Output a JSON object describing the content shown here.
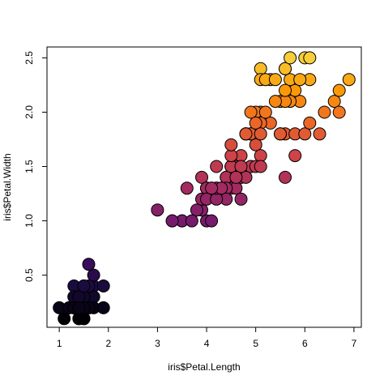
{
  "chart_data": {
    "type": "scatter",
    "title": "",
    "xlabel": "iris$Petal.Length",
    "ylabel": "iris$Petal.Width",
    "xlim": [
      0.75,
      7.15
    ],
    "ylim": [
      0.02,
      2.6
    ],
    "xticks": [
      1,
      2,
      3,
      4,
      5,
      6,
      7
    ],
    "yticks": [
      0.5,
      1.0,
      1.5,
      2.0,
      2.5
    ],
    "ytick_labels": [
      "0.5",
      "1.0",
      "1.5",
      "2.0",
      "2.5"
    ],
    "grid": false,
    "legend": "none",
    "color_scale": "inferno-like, mapped to y value",
    "colors": {
      "low": "#000004",
      "stops": [
        "#000004",
        "#1b0c41",
        "#4a0c6b",
        "#781c6d",
        "#a52c60",
        "#cf4446",
        "#ed6925",
        "#fb9b06",
        "#f7d13d",
        "#fcffa4"
      ],
      "marker_edge": "#000000"
    },
    "points": [
      [
        1.4,
        0.2
      ],
      [
        1.4,
        0.2
      ],
      [
        1.3,
        0.2
      ],
      [
        1.5,
        0.2
      ],
      [
        1.4,
        0.2
      ],
      [
        1.7,
        0.4
      ],
      [
        1.4,
        0.3
      ],
      [
        1.5,
        0.2
      ],
      [
        1.4,
        0.2
      ],
      [
        1.5,
        0.1
      ],
      [
        1.5,
        0.2
      ],
      [
        1.6,
        0.2
      ],
      [
        1.4,
        0.1
      ],
      [
        1.1,
        0.1
      ],
      [
        1.2,
        0.2
      ],
      [
        1.5,
        0.4
      ],
      [
        1.3,
        0.4
      ],
      [
        1.4,
        0.3
      ],
      [
        1.7,
        0.3
      ],
      [
        1.5,
        0.3
      ],
      [
        1.7,
        0.2
      ],
      [
        1.5,
        0.4
      ],
      [
        1.0,
        0.2
      ],
      [
        1.7,
        0.5
      ],
      [
        1.9,
        0.2
      ],
      [
        1.6,
        0.2
      ],
      [
        1.6,
        0.4
      ],
      [
        1.5,
        0.2
      ],
      [
        1.4,
        0.2
      ],
      [
        1.6,
        0.2
      ],
      [
        1.6,
        0.2
      ],
      [
        1.5,
        0.4
      ],
      [
        1.5,
        0.1
      ],
      [
        1.4,
        0.2
      ],
      [
        1.5,
        0.2
      ],
      [
        1.2,
        0.2
      ],
      [
        1.3,
        0.2
      ],
      [
        1.4,
        0.1
      ],
      [
        1.3,
        0.2
      ],
      [
        1.5,
        0.2
      ],
      [
        1.3,
        0.3
      ],
      [
        1.3,
        0.3
      ],
      [
        1.3,
        0.2
      ],
      [
        1.6,
        0.6
      ],
      [
        1.9,
        0.4
      ],
      [
        1.4,
        0.3
      ],
      [
        1.6,
        0.2
      ],
      [
        1.4,
        0.2
      ],
      [
        1.5,
        0.2
      ],
      [
        1.4,
        0.2
      ],
      [
        4.7,
        1.4
      ],
      [
        4.5,
        1.5
      ],
      [
        4.9,
        1.5
      ],
      [
        4.0,
        1.3
      ],
      [
        4.6,
        1.5
      ],
      [
        4.5,
        1.3
      ],
      [
        4.7,
        1.6
      ],
      [
        3.3,
        1.0
      ],
      [
        4.6,
        1.3
      ],
      [
        3.9,
        1.4
      ],
      [
        3.5,
        1.0
      ],
      [
        4.2,
        1.5
      ],
      [
        4.0,
        1.0
      ],
      [
        4.7,
        1.4
      ],
      [
        3.6,
        1.3
      ],
      [
        4.4,
        1.4
      ],
      [
        4.5,
        1.5
      ],
      [
        4.1,
        1.0
      ],
      [
        4.5,
        1.5
      ],
      [
        3.9,
        1.1
      ],
      [
        4.8,
        1.8
      ],
      [
        4.0,
        1.3
      ],
      [
        4.9,
        1.5
      ],
      [
        4.7,
        1.2
      ],
      [
        4.3,
        1.3
      ],
      [
        4.4,
        1.4
      ],
      [
        4.8,
        1.4
      ],
      [
        5.0,
        1.7
      ],
      [
        4.5,
        1.5
      ],
      [
        3.5,
        1.0
      ],
      [
        3.8,
        1.1
      ],
      [
        3.7,
        1.0
      ],
      [
        3.9,
        1.2
      ],
      [
        5.1,
        1.6
      ],
      [
        4.5,
        1.5
      ],
      [
        4.5,
        1.6
      ],
      [
        4.7,
        1.5
      ],
      [
        4.4,
        1.3
      ],
      [
        4.1,
        1.3
      ],
      [
        4.0,
        1.3
      ],
      [
        4.4,
        1.2
      ],
      [
        4.6,
        1.4
      ],
      [
        4.0,
        1.2
      ],
      [
        3.3,
        1.0
      ],
      [
        4.2,
        1.3
      ],
      [
        4.2,
        1.2
      ],
      [
        4.2,
        1.3
      ],
      [
        4.3,
        1.3
      ],
      [
        3.0,
        1.1
      ],
      [
        4.1,
        1.3
      ],
      [
        6.0,
        2.5
      ],
      [
        5.1,
        1.9
      ],
      [
        5.9,
        2.1
      ],
      [
        5.6,
        1.8
      ],
      [
        5.8,
        2.2
      ],
      [
        6.6,
        2.1
      ],
      [
        4.5,
        1.7
      ],
      [
        6.3,
        1.8
      ],
      [
        5.8,
        1.8
      ],
      [
        6.1,
        2.5
      ],
      [
        5.1,
        2.0
      ],
      [
        5.3,
        1.9
      ],
      [
        5.5,
        2.1
      ],
      [
        5.0,
        2.0
      ],
      [
        5.1,
        2.4
      ],
      [
        5.3,
        2.3
      ],
      [
        5.5,
        1.8
      ],
      [
        6.7,
        2.2
      ],
      [
        6.9,
        2.3
      ],
      [
        5.0,
        1.5
      ],
      [
        5.7,
        2.3
      ],
      [
        4.9,
        2.0
      ],
      [
        6.7,
        2.0
      ],
      [
        4.9,
        1.8
      ],
      [
        5.7,
        2.1
      ],
      [
        6.0,
        1.8
      ],
      [
        4.8,
        1.8
      ],
      [
        4.9,
        1.8
      ],
      [
        5.6,
        2.1
      ],
      [
        5.8,
        1.6
      ],
      [
        6.1,
        1.9
      ],
      [
        6.4,
        2.0
      ],
      [
        5.6,
        2.2
      ],
      [
        5.1,
        1.5
      ],
      [
        5.6,
        1.4
      ],
      [
        6.1,
        2.3
      ],
      [
        5.6,
        2.4
      ],
      [
        5.5,
        1.8
      ],
      [
        4.8,
        1.8
      ],
      [
        5.4,
        2.1
      ],
      [
        5.6,
        2.4
      ],
      [
        5.1,
        2.3
      ],
      [
        5.1,
        1.9
      ],
      [
        5.9,
        2.3
      ],
      [
        5.7,
        2.5
      ],
      [
        5.2,
        2.3
      ],
      [
        5.0,
        1.9
      ],
      [
        5.2,
        2.0
      ],
      [
        5.4,
        2.3
      ],
      [
        5.1,
        1.8
      ]
    ]
  }
}
